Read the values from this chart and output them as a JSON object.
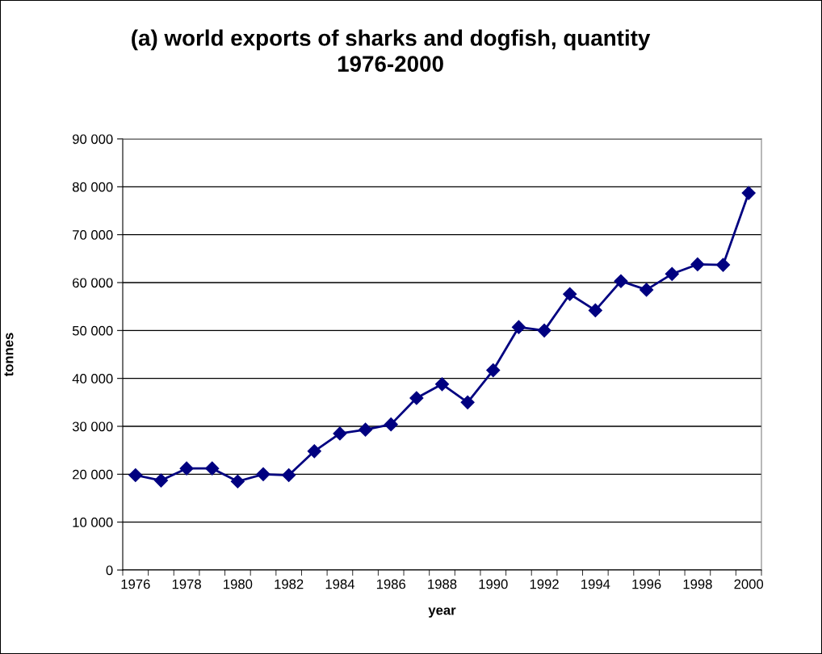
{
  "chart_data": {
    "type": "line",
    "title": "(a) world exports of sharks and dogfish, quantity\n1976-2000",
    "xlabel": "year",
    "ylabel": "tonnes",
    "categories": [
      "1976",
      null,
      "1978",
      null,
      "1980",
      null,
      "1982",
      null,
      "1984",
      null,
      "1986",
      null,
      "1988",
      null,
      "1990",
      null,
      "1992",
      null,
      "1994",
      null,
      "1996",
      null,
      "1998",
      null,
      "2000"
    ],
    "series": [
      {
        "color": "#000080",
        "values": [
          19800,
          18700,
          21200,
          21200,
          18500,
          20000,
          19800,
          24800,
          28500,
          29300,
          30400,
          35900,
          38800,
          35000,
          41700,
          50700,
          50000,
          57600,
          54200,
          60300,
          58500,
          61800,
          63800,
          63700,
          78700
        ]
      }
    ],
    "ylim": [
      0,
      90000
    ],
    "yticks": [
      {
        "value": 0,
        "label": "0"
      },
      {
        "value": 10000,
        "label": "10 000"
      },
      {
        "value": 20000,
        "label": "20 000"
      },
      {
        "value": 30000,
        "label": "30 000"
      },
      {
        "value": 40000,
        "label": "40 000"
      },
      {
        "value": 50000,
        "label": "50 000"
      },
      {
        "value": 60000,
        "label": "60 000"
      },
      {
        "value": 70000,
        "label": "70 000"
      },
      {
        "value": 80000,
        "label": "80 000"
      },
      {
        "value": 90000,
        "label": "90 000"
      }
    ],
    "grid": "y",
    "marker": "diamond",
    "line_style": "solid",
    "legend": false
  }
}
